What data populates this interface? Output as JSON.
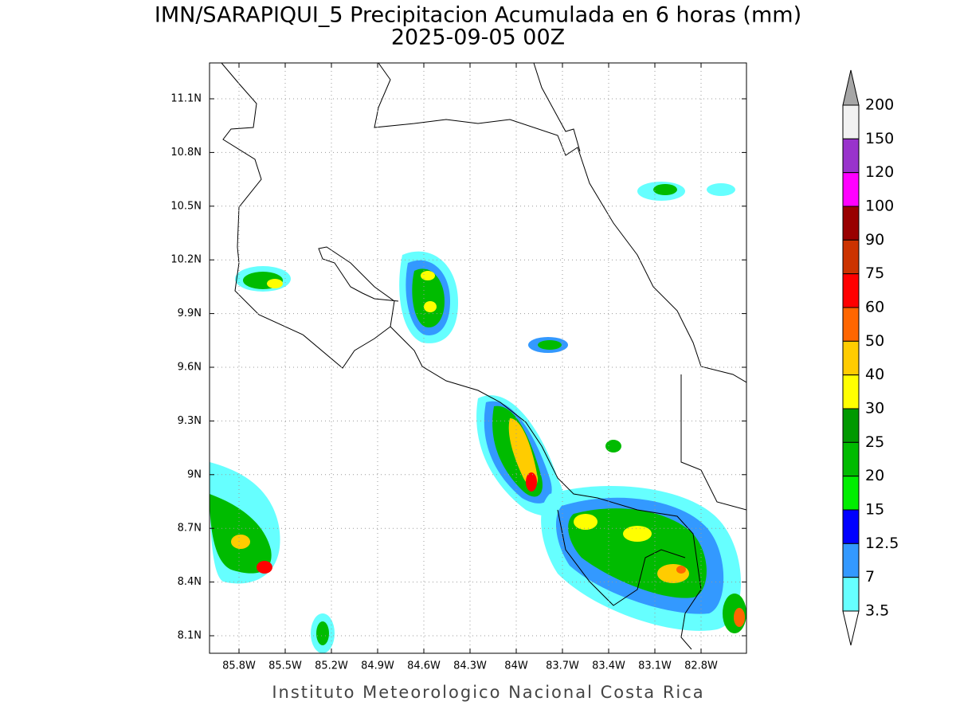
{
  "header": {
    "title": "IMN/SARAPIQUI_5 Precipitacion Acumulada en 6 horas (mm)",
    "subtitle": "2025-09-05 00Z"
  },
  "map": {
    "lon_ticks": [
      "85.8W",
      "85.5W",
      "85.2W",
      "84.9W",
      "84.6W",
      "84.3W",
      "84W",
      "83.7W",
      "83.4W",
      "83.1W",
      "82.8W"
    ],
    "lat_ticks": [
      "11.1N",
      "10.8N",
      "10.5N",
      "10.2N",
      "9.9N",
      "9.6N",
      "9.3N",
      "9N",
      "8.7N",
      "8.4N",
      "8.1N"
    ]
  },
  "legend": {
    "levels": [
      200,
      150,
      120,
      100,
      90,
      75,
      60,
      50,
      40,
      30,
      25,
      20,
      15,
      12.5,
      7,
      3.5
    ],
    "colors": [
      "#f2f2f2",
      "#9933cc",
      "#ff00ff",
      "#990000",
      "#cc3300",
      "#ff0000",
      "#ff6600",
      "#ffcc00",
      "#ffff00",
      "#009900",
      "#00bb00",
      "#00ee00",
      "#0000ff",
      "#3399ff",
      "#66ffff"
    ],
    "over_color": "#a6a6a6",
    "under_color": "#ffffff"
  },
  "footer": "Instituto Meteorologico Nacional Costa Rica"
}
